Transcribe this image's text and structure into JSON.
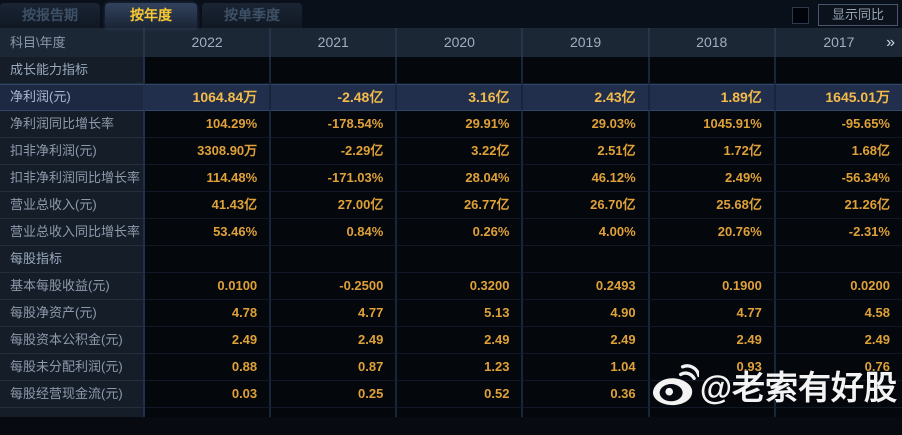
{
  "tabs": [
    {
      "label": "按报告期",
      "active": false
    },
    {
      "label": "按年度",
      "active": true
    },
    {
      "label": "按单季度",
      "active": false
    }
  ],
  "yoy_toggle": {
    "label": "显示同比",
    "checked": false
  },
  "table": {
    "corner_header": "科目\\年度",
    "years": [
      "2022",
      "2021",
      "2020",
      "2019",
      "2018",
      "2017"
    ],
    "more_icon": "»",
    "rows": [
      {
        "label": "成长能力指标",
        "type": "section",
        "values": [
          "",
          "",
          "",
          "",
          "",
          ""
        ]
      },
      {
        "label": "净利润(元)",
        "type": "highlight",
        "values": [
          "1064.84万",
          "-2.48亿",
          "3.16亿",
          "2.43亿",
          "1.89亿",
          "1645.01万"
        ]
      },
      {
        "label": "净利润同比增长率",
        "type": "data",
        "values": [
          "104.29%",
          "-178.54%",
          "29.91%",
          "29.03%",
          "1045.91%",
          "-95.65%"
        ]
      },
      {
        "label": "扣非净利润(元)",
        "type": "data",
        "values": [
          "3308.90万",
          "-2.29亿",
          "3.22亿",
          "2.51亿",
          "1.72亿",
          "1.68亿"
        ]
      },
      {
        "label": "扣非净利润同比增长率",
        "type": "data",
        "values": [
          "114.48%",
          "-171.03%",
          "28.04%",
          "46.12%",
          "2.49%",
          "-56.34%"
        ]
      },
      {
        "label": "营业总收入(元)",
        "type": "data",
        "values": [
          "41.43亿",
          "27.00亿",
          "26.77亿",
          "26.70亿",
          "25.68亿",
          "21.26亿"
        ]
      },
      {
        "label": "营业总收入同比增长率",
        "type": "data",
        "values": [
          "53.46%",
          "0.84%",
          "0.26%",
          "4.00%",
          "20.76%",
          "-2.31%"
        ]
      },
      {
        "label": "每股指标",
        "type": "section",
        "values": [
          "",
          "",
          "",
          "",
          "",
          ""
        ]
      },
      {
        "label": "基本每股收益(元)",
        "type": "data",
        "values": [
          "0.0100",
          "-0.2500",
          "0.3200",
          "0.2493",
          "0.1900",
          "0.0200"
        ]
      },
      {
        "label": "每股净资产(元)",
        "type": "data",
        "values": [
          "4.78",
          "4.77",
          "5.13",
          "4.90",
          "4.77",
          "4.58"
        ]
      },
      {
        "label": "每股资本公积金(元)",
        "type": "data",
        "values": [
          "2.49",
          "2.49",
          "2.49",
          "2.49",
          "2.49",
          "2.49"
        ]
      },
      {
        "label": "每股未分配利润(元)",
        "type": "data",
        "values": [
          "0.88",
          "0.87",
          "1.23",
          "1.04",
          "0.93",
          "0.76"
        ]
      },
      {
        "label": "每股经营现金流(元)",
        "type": "data",
        "values": [
          "0.03",
          "0.25",
          "0.52",
          "0.36",
          "",
          ""
        ]
      }
    ]
  },
  "watermark": {
    "handle": "@老索有好股",
    "icon": "weibo-logo"
  },
  "colors": {
    "value_gold": "#dfa138",
    "highlight_gold": "#f3bb4a",
    "active_tab_text": "#f8c832",
    "highlight_row_bg": "#222f4c",
    "header_bg": "#1c2736",
    "label_col_bg": "#151d29",
    "cell_bg": "#04070c"
  }
}
